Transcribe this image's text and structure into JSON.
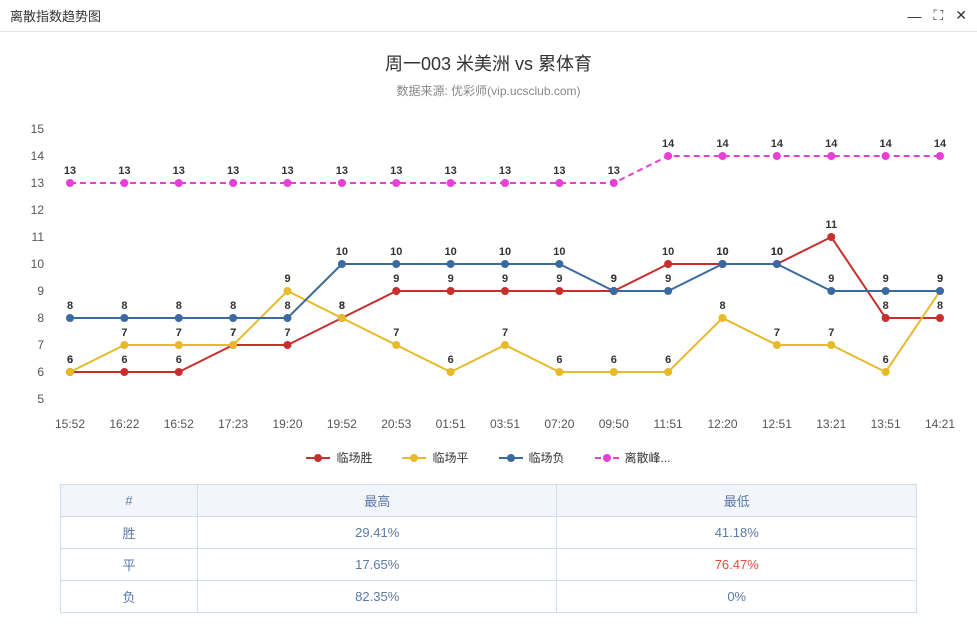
{
  "window": {
    "title": "离散指数趋势图",
    "minimize": "—",
    "maximize": "⛶",
    "close": "✕"
  },
  "chart": {
    "title": "周一003 米美洲 vs 累体育",
    "subtitle": "数据来源: 优彩师(vip.ucsclub.com)",
    "type": "line",
    "xlabels": [
      "15:52",
      "16:22",
      "16:52",
      "17:23",
      "19:20",
      "19:52",
      "20:53",
      "01:51",
      "03:51",
      "07:20",
      "09:50",
      "11:51",
      "12:20",
      "12:51",
      "13:21",
      "13:51",
      "14:21"
    ],
    "ylim": [
      5,
      15
    ],
    "ytick_step": 1,
    "background_color": "#ffffff",
    "series": [
      {
        "name": "临场胜",
        "color": "#c72e2e",
        "dashed": false,
        "data": [
          6,
          6,
          6,
          7,
          7,
          8,
          9,
          9,
          9,
          9,
          9,
          10,
          10,
          10,
          11,
          8,
          8
        ]
      },
      {
        "name": "临场平",
        "color": "#e8ba2a",
        "dashed": false,
        "data": [
          6,
          7,
          7,
          7,
          9,
          8,
          7,
          6,
          7,
          6,
          6,
          6,
          8,
          7,
          7,
          6,
          9
        ]
      },
      {
        "name": "临场负",
        "color": "#3b6aa0",
        "dashed": false,
        "data": [
          8,
          8,
          8,
          8,
          8,
          10,
          10,
          10,
          10,
          10,
          9,
          9,
          10,
          10,
          9,
          9,
          9
        ]
      },
      {
        "name": "离散峰...",
        "color": "#e83fd5",
        "dashed": true,
        "data": [
          13,
          13,
          13,
          13,
          13,
          13,
          13,
          13,
          13,
          13,
          13,
          14,
          14,
          14,
          14,
          14,
          14
        ]
      }
    ],
    "marker_radius": 4,
    "line_width": 2,
    "label_fontsize": 11
  },
  "table": {
    "headers": [
      "#",
      "最高",
      "最低"
    ],
    "rows": [
      {
        "label": "胜",
        "high": "29.41%",
        "low": "41.18%",
        "low_red": false
      },
      {
        "label": "平",
        "high": "17.65%",
        "low": "76.47%",
        "low_red": true
      },
      {
        "label": "负",
        "high": "82.35%",
        "low": "0%",
        "low_red": false
      }
    ]
  }
}
